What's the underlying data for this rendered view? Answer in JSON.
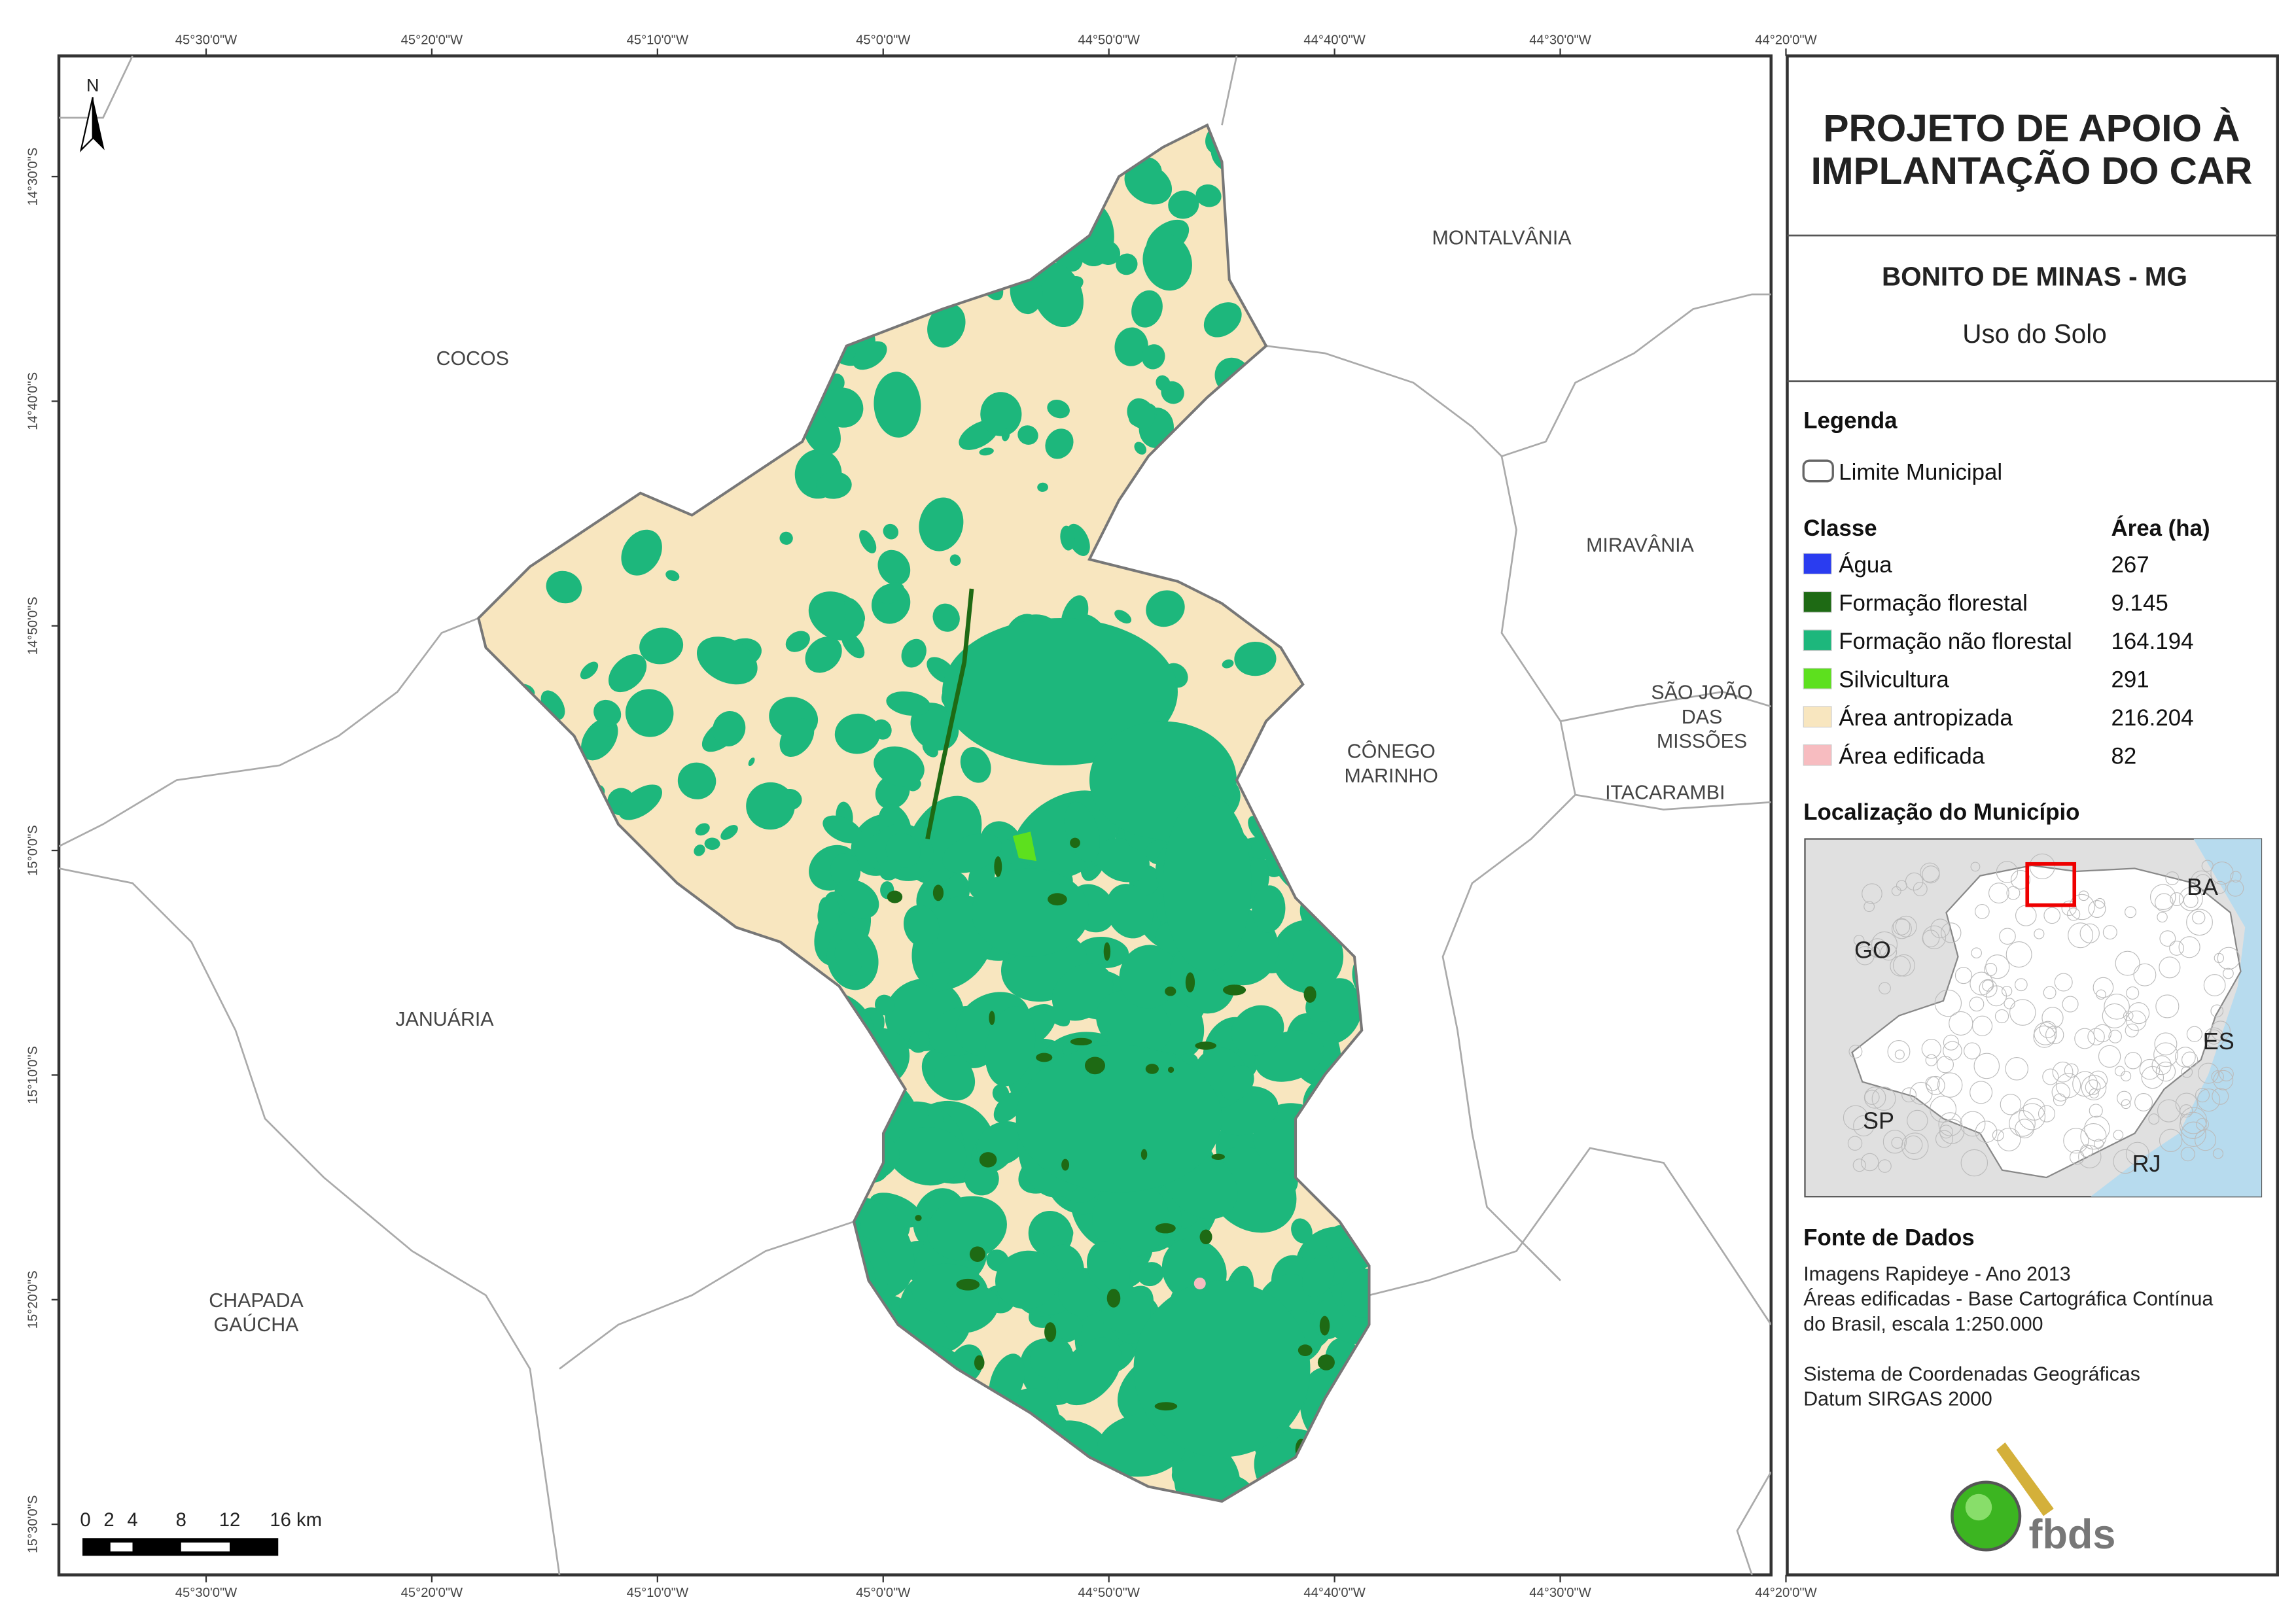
{
  "header": {
    "title": [
      "PROJETO DE APOIO À",
      "IMPLANTAÇÃO DO CAR"
    ],
    "municipality": "BONITO DE MINAS - MG",
    "theme": "Uso do Solo"
  },
  "graticule": {
    "lon": [
      "45°30'0\"W",
      "45°20'0\"W",
      "45°10'0\"W",
      "45°0'0\"W",
      "44°50'0\"W",
      "44°40'0\"W",
      "44°30'0\"W",
      "44°20'0\"W"
    ],
    "lat": [
      "14°30'0\"S",
      "14°40'0\"S",
      "14°50'0\"S",
      "15°0'0\"S",
      "15°10'0\"S",
      "15°20'0\"S",
      "15°30'0\"S"
    ]
  },
  "map_labels": [
    [
      "COCOS"
    ],
    [
      "MONTALVÂNIA"
    ],
    [
      "MIRAVÂNIA"
    ],
    [
      "SÃO JOÃO",
      "DAS",
      "MISSÕES"
    ],
    [
      "CÔNEGO",
      "MARINHO"
    ],
    [
      "ITACARAMBI"
    ],
    [
      "JANUÁRIA"
    ],
    [
      "CHAPADA",
      "GAÚCHA"
    ]
  ],
  "north": "N",
  "scale_bar": [
    "0",
    "2",
    "4",
    "8",
    "12",
    "16 km"
  ],
  "legend": {
    "title": "Legenda",
    "boundary": "Limite Municipal",
    "class_header": "Classe",
    "area_header": "Área (ha)",
    "classes": [
      {
        "name": "Água",
        "area": "267",
        "color": "#2a3cf0"
      },
      {
        "name": "Formação florestal",
        "area": "9.145",
        "color": "#1e6a14"
      },
      {
        "name": "Formação não florestal",
        "area": "164.194",
        "color": "#1db77c"
      },
      {
        "name": "Silvicultura",
        "area": "291",
        "color": "#5de01e"
      },
      {
        "name": "Área antropizada",
        "area": "216.204",
        "color": "#f8e6bf"
      },
      {
        "name": "Área edificada",
        "area": "82",
        "color": "#f7bcc0"
      }
    ]
  },
  "location": {
    "title": "Localização do Município",
    "states": [
      "BA",
      "GO",
      "ES",
      "SP",
      "RJ"
    ]
  },
  "sources": {
    "title": "Fonte de Dados",
    "lines": [
      "Imagens Rapideye - Ano 2013",
      "Áreas edificadas - Base Cartográfica Contínua",
      "do Brasil, escala 1:250.000",
      "",
      "Sistema de Coordenadas Geográficas",
      "Datum SIRGAS 2000"
    ]
  },
  "logo": "fbds"
}
